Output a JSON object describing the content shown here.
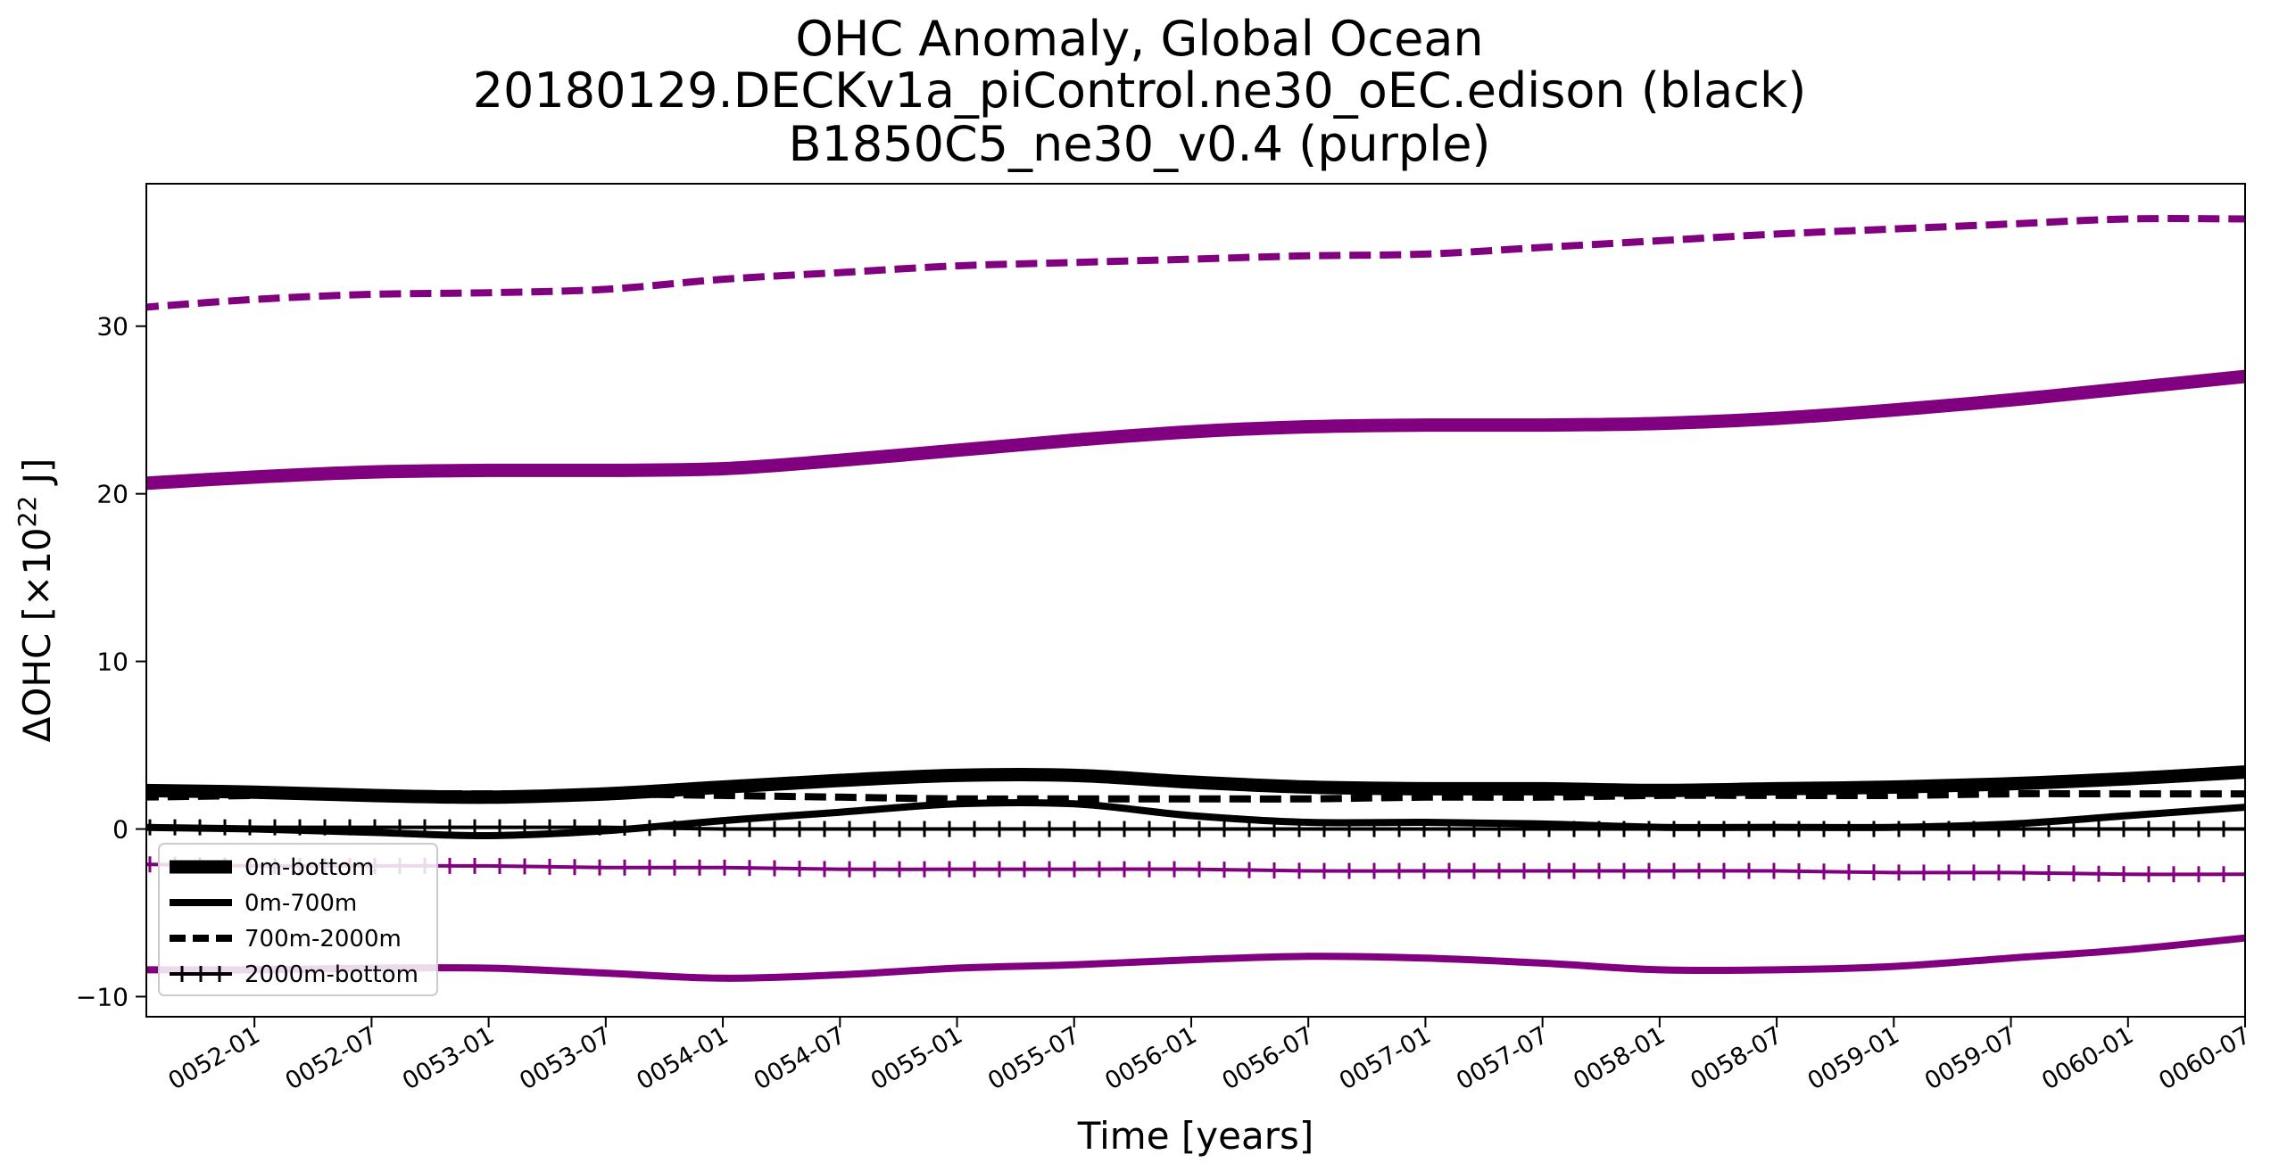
{
  "chart_data": {
    "type": "line",
    "title": [
      "OHC Anomaly, Global Ocean",
      "20180129.DECKv1a_piControl.ne30_oEC.edison (black)",
      "B1850C5_ne30_v0.4 (purple)"
    ],
    "xlabel": "Time [years]",
    "ylabel_prefix": "ΔOHC [×10",
    "ylabel_sup": "22",
    "ylabel_suffix": " J]",
    "x_ticks": [
      "0052-01",
      "0052-07",
      "0053-01",
      "0053-07",
      "0054-01",
      "0054-07",
      "0055-01",
      "0055-07",
      "0056-01",
      "0056-07",
      "0057-01",
      "0057-07",
      "0058-01",
      "0058-07",
      "0059-01",
      "0059-07",
      "0060-01",
      "0060-07"
    ],
    "xlim": [
      "0051-07-15",
      "0060-07-01"
    ],
    "y_ticks": [
      -10,
      0,
      10,
      20,
      30
    ],
    "ylim": [
      -11.2,
      38.5
    ],
    "grid": false,
    "legend_position": "lower-left",
    "legend": [
      {
        "label": "0m-bottom",
        "style": "0m-bottom"
      },
      {
        "label": "0m-700m",
        "style": "0m-700m"
      },
      {
        "label": "700m-2000m",
        "style": "700m-2000m"
      },
      {
        "label": "2000m-bottom",
        "style": "2000m-bottom"
      }
    ],
    "x": [
      "0051-07",
      "0052-01",
      "0052-07",
      "0053-01",
      "0053-07",
      "0054-01",
      "0054-07",
      "0055-01",
      "0055-07",
      "0056-01",
      "0056-07",
      "0057-01",
      "0057-07",
      "0058-01",
      "0058-07",
      "0059-01",
      "0059-07",
      "0060-01",
      "0060-07"
    ],
    "series": [
      {
        "name": "0m-bottom",
        "run": "black",
        "color": "#000000",
        "style": "0m-bottom",
        "values": [
          2.3,
          2.2,
          2.0,
          1.9,
          2.1,
          2.5,
          2.9,
          3.2,
          3.2,
          2.8,
          2.5,
          2.4,
          2.4,
          2.3,
          2.4,
          2.5,
          2.7,
          3.0,
          3.4
        ]
      },
      {
        "name": "0m-700m",
        "run": "black",
        "color": "#000000",
        "style": "0m-700m",
        "values": [
          0.1,
          0.0,
          -0.2,
          -0.4,
          -0.1,
          0.5,
          1.0,
          1.5,
          1.5,
          0.8,
          0.4,
          0.4,
          0.3,
          0.1,
          0.1,
          0.1,
          0.3,
          0.8,
          1.3
        ]
      },
      {
        "name": "700m-2000m",
        "run": "black",
        "color": "#000000",
        "style": "700m-2000m",
        "values": [
          1.9,
          2.0,
          2.1,
          2.1,
          2.1,
          2.0,
          1.9,
          1.8,
          1.8,
          1.8,
          1.8,
          1.9,
          1.9,
          2.0,
          2.0,
          2.0,
          2.1,
          2.1,
          2.1
        ]
      },
      {
        "name": "2000m-bottom",
        "run": "black",
        "color": "#000000",
        "style": "2000m-bottom",
        "values": [
          0.1,
          0.1,
          0.1,
          0.1,
          0.1,
          0.0,
          0.0,
          0.0,
          0.0,
          0.0,
          0.0,
          0.0,
          0.0,
          0.0,
          0.0,
          0.0,
          0.0,
          0.0,
          0.0
        ]
      },
      {
        "name": "0m-bottom",
        "run": "purple",
        "color": "#800080",
        "style": "0m-bottom",
        "values": [
          20.6,
          21.0,
          21.3,
          21.4,
          21.4,
          21.5,
          22.0,
          22.6,
          23.2,
          23.7,
          24.0,
          24.1,
          24.1,
          24.2,
          24.5,
          25.0,
          25.6,
          26.3,
          27.0
        ]
      },
      {
        "name": "0m-700m",
        "run": "purple",
        "color": "#800080",
        "style": "0m-700m",
        "values": [
          -8.4,
          -8.4,
          -8.3,
          -8.3,
          -8.6,
          -8.9,
          -8.7,
          -8.3,
          -8.1,
          -7.8,
          -7.6,
          -7.7,
          -8.0,
          -8.4,
          -8.4,
          -8.2,
          -7.7,
          -7.2,
          -6.5
        ]
      },
      {
        "name": "700m-2000m",
        "run": "purple",
        "color": "#800080",
        "style": "700m-2000m",
        "values": [
          31.1,
          31.6,
          31.9,
          32.0,
          32.2,
          32.8,
          33.2,
          33.6,
          33.8,
          34.0,
          34.2,
          34.3,
          34.7,
          35.1,
          35.5,
          35.8,
          36.1,
          36.4,
          36.4
        ]
      },
      {
        "name": "2000m-bottom",
        "run": "purple",
        "color": "#800080",
        "style": "2000m-bottom",
        "values": [
          -2.1,
          -2.2,
          -2.2,
          -2.2,
          -2.3,
          -2.3,
          -2.4,
          -2.4,
          -2.4,
          -2.4,
          -2.5,
          -2.5,
          -2.5,
          -2.5,
          -2.5,
          -2.6,
          -2.6,
          -2.7,
          -2.7
        ]
      }
    ]
  }
}
